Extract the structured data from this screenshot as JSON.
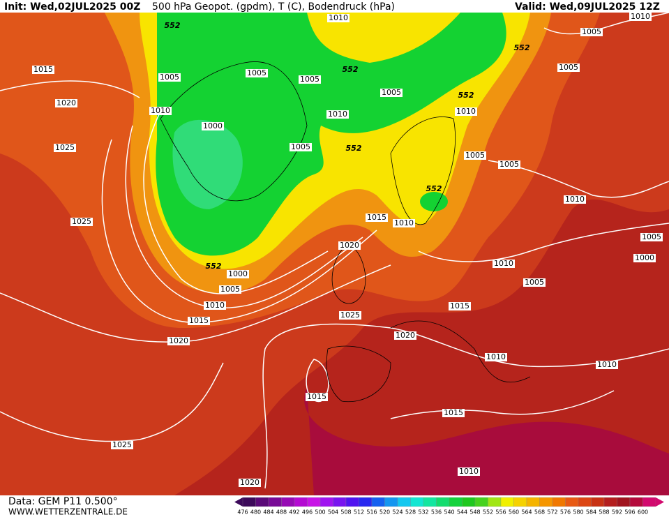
{
  "header": {
    "init": "Init: Wed,02JUL2025 00Z",
    "title": "500 hPa Geopot. (gpdm), T (C), Bodendruck (hPa)",
    "valid": "Valid: Wed,09JUL2025 12Z"
  },
  "footer": {
    "data": "Data: GEM P11 0.500°",
    "site": "WWW.WETTERZENTRALE.DE"
  },
  "map": {
    "contour_labels": [
      "1010",
      "552",
      "1005",
      "552",
      "1015",
      "1005",
      "1005",
      "1005",
      "552",
      "1005",
      "552",
      "1005",
      "1020",
      "1010",
      "1010",
      "1010",
      "1000",
      "1005",
      "552",
      "1025",
      "1005",
      "1005",
      "552",
      "1010",
      "1015",
      "1010",
      "1025",
      "1005",
      "1020",
      "552",
      "1000",
      "1000",
      "1010",
      "1005",
      "1005",
      "1010",
      "1015",
      "1025",
      "1015",
      "1020",
      "1020",
      "1010",
      "1010",
      "1015",
      "1015",
      "1025",
      "1010",
      "1020",
      "1010"
    ]
  },
  "legend": {
    "labels": [
      476,
      480,
      484,
      488,
      492,
      496,
      500,
      504,
      508,
      512,
      516,
      520,
      524,
      528,
      532,
      536,
      540,
      544,
      548,
      552,
      556,
      560,
      564,
      568,
      572,
      576,
      580,
      584,
      588,
      592,
      596,
      600
    ],
    "colors": [
      "#3c0a5a",
      "#5a0a78",
      "#780a96",
      "#960ab4",
      "#b40ad2",
      "#c814e6",
      "#a014f0",
      "#7814f0",
      "#5014f0",
      "#2828f0",
      "#1460f0",
      "#1496f0",
      "#14c8f0",
      "#14e6d2",
      "#14e6a0",
      "#14dc6e",
      "#14d23c",
      "#1ec81e",
      "#46d21e",
      "#a0e614",
      "#f0f000",
      "#f5d200",
      "#f5b400",
      "#f59600",
      "#f07800",
      "#e85a14",
      "#dc4614",
      "#c83214",
      "#b41e1e",
      "#a0141e",
      "#b40a3c",
      "#d20a6e"
    ]
  }
}
